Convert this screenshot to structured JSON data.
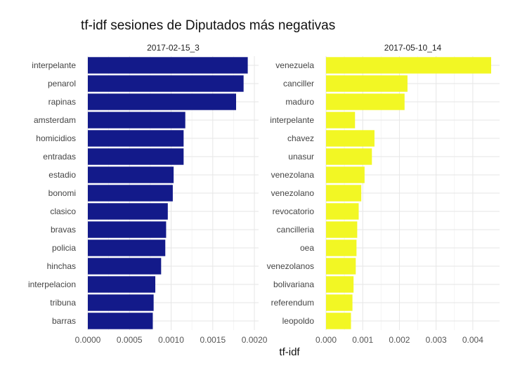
{
  "chart_data": {
    "type": "bar",
    "orientation": "horizontal",
    "title": "tf-idf sesiones de Diputados más negativas",
    "xlabel": "tf-idf",
    "ylabel": "",
    "panels": [
      {
        "name": "2017-02-15_3",
        "color": "#131A8A",
        "xlim": [
          0,
          0.00205
        ],
        "xticks": [
          "0.0000",
          "0.0005",
          "0.0010",
          "0.0015",
          "0.0020"
        ],
        "xtick_values": [
          0,
          0.0005,
          0.001,
          0.0015,
          0.002
        ],
        "categories": [
          "interpelante",
          "penarol",
          "rapinas",
          "amsterdam",
          "homicidios",
          "entradas",
          "estadio",
          "bonomi",
          "clasico",
          "bravas",
          "policia",
          "hinchas",
          "interpelacion",
          "tribuna",
          "barras"
        ],
        "values": [
          0.00192,
          0.00187,
          0.00178,
          0.00117,
          0.00115,
          0.00115,
          0.00103,
          0.00102,
          0.00096,
          0.00094,
          0.00093,
          0.00088,
          0.00081,
          0.00079,
          0.00078
        ]
      },
      {
        "name": "2017-05-10_14",
        "color": "#F2F724",
        "xlim": [
          0,
          0.00473
        ],
        "xticks": [
          "0.000",
          "0.001",
          "0.002",
          "0.003",
          "0.004"
        ],
        "xtick_values": [
          0,
          0.001,
          0.002,
          0.003,
          0.004
        ],
        "categories": [
          "venezuela",
          "canciller",
          "maduro",
          "interpelante",
          "chavez",
          "unasur",
          "venezolana",
          "venezolano",
          "revocatorio",
          "cancilleria",
          "oea",
          "venezolanos",
          "bolivariana",
          "referendum",
          "leopoldo"
        ],
        "values": [
          0.0045,
          0.00222,
          0.00214,
          0.00079,
          0.00132,
          0.00125,
          0.00105,
          0.00096,
          0.00089,
          0.00085,
          0.00083,
          0.00081,
          0.00075,
          0.00072,
          0.00068
        ]
      }
    ]
  }
}
